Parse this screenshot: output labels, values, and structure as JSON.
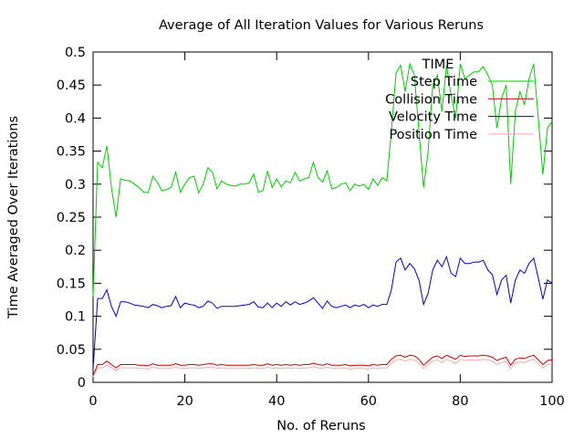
{
  "chart_data": {
    "type": "line",
    "title": "Average of All Iteration Values for Various Reruns",
    "xlabel": "No. of Reruns",
    "ylabel": "Time Averaged Over Iterations",
    "xlim": [
      0,
      100
    ],
    "ylim": [
      0,
      0.5
    ],
    "xticks": [
      "0",
      "20",
      "40",
      "60",
      "80",
      "100"
    ],
    "yticks": [
      "0",
      "0.05",
      "0.1",
      "0.15",
      "0.2",
      "0.25",
      "0.3",
      "0.35",
      "0.4",
      "0.45",
      "0.5"
    ],
    "grid": false,
    "legend_title": "TIME",
    "legend_position": "top-right",
    "x": [
      0,
      1,
      2,
      3,
      4,
      5,
      6,
      7,
      8,
      9,
      10,
      11,
      12,
      13,
      14,
      15,
      16,
      17,
      18,
      19,
      20,
      21,
      22,
      23,
      24,
      25,
      26,
      27,
      28,
      29,
      30,
      31,
      32,
      33,
      34,
      35,
      36,
      37,
      38,
      39,
      40,
      41,
      42,
      43,
      44,
      45,
      46,
      47,
      48,
      49,
      50,
      51,
      52,
      53,
      54,
      55,
      56,
      57,
      58,
      59,
      60,
      61,
      62,
      63,
      64,
      65,
      66,
      67,
      68,
      69,
      70,
      71,
      72,
      73,
      74,
      75,
      76,
      77,
      78,
      79,
      80,
      81,
      82,
      83,
      84,
      85,
      86,
      87,
      88,
      89,
      90,
      91,
      92,
      93,
      94,
      95,
      96,
      97,
      98,
      99,
      100
    ],
    "series": [
      {
        "name": "Step Time",
        "color": "#00cc00",
        "values": [
          0.13,
          0.333,
          0.325,
          0.358,
          0.295,
          0.25,
          0.308,
          0.306,
          0.305,
          0.3,
          0.295,
          0.288,
          0.287,
          0.312,
          0.303,
          0.29,
          0.292,
          0.295,
          0.318,
          0.288,
          0.3,
          0.31,
          0.312,
          0.287,
          0.3,
          0.325,
          0.318,
          0.293,
          0.305,
          0.3,
          0.298,
          0.297,
          0.3,
          0.3,
          0.302,
          0.315,
          0.288,
          0.29,
          0.32,
          0.295,
          0.308,
          0.296,
          0.305,
          0.302,
          0.318,
          0.305,
          0.308,
          0.31,
          0.333,
          0.31,
          0.303,
          0.32,
          0.293,
          0.295,
          0.3,
          0.302,
          0.29,
          0.3,
          0.297,
          0.3,
          0.292,
          0.308,
          0.298,
          0.31,
          0.305,
          0.38,
          0.468,
          0.48,
          0.44,
          0.482,
          0.465,
          0.38,
          0.295,
          0.35,
          0.45,
          0.465,
          0.41,
          0.48,
          0.435,
          0.4,
          0.482,
          0.46,
          0.465,
          0.47,
          0.47,
          0.478,
          0.465,
          0.45,
          0.385,
          0.43,
          0.45,
          0.3,
          0.41,
          0.44,
          0.42,
          0.46,
          0.482,
          0.4,
          0.315,
          0.385,
          0.395
        ]
      },
      {
        "name": "Collision Time",
        "color": "#cc0000",
        "values": [
          0.01,
          0.027,
          0.027,
          0.032,
          0.027,
          0.022,
          0.027,
          0.027,
          0.027,
          0.027,
          0.026,
          0.026,
          0.025,
          0.028,
          0.026,
          0.026,
          0.026,
          0.026,
          0.028,
          0.026,
          0.026,
          0.027,
          0.027,
          0.026,
          0.027,
          0.028,
          0.028,
          0.026,
          0.027,
          0.026,
          0.026,
          0.026,
          0.026,
          0.026,
          0.026,
          0.027,
          0.026,
          0.026,
          0.028,
          0.026,
          0.027,
          0.026,
          0.027,
          0.026,
          0.027,
          0.026,
          0.027,
          0.027,
          0.029,
          0.027,
          0.026,
          0.028,
          0.026,
          0.026,
          0.026,
          0.027,
          0.025,
          0.026,
          0.026,
          0.026,
          0.025,
          0.027,
          0.026,
          0.027,
          0.027,
          0.035,
          0.04,
          0.041,
          0.038,
          0.041,
          0.04,
          0.035,
          0.026,
          0.032,
          0.038,
          0.04,
          0.036,
          0.041,
          0.038,
          0.035,
          0.041,
          0.039,
          0.04,
          0.04,
          0.04,
          0.041,
          0.04,
          0.038,
          0.033,
          0.036,
          0.038,
          0.026,
          0.035,
          0.037,
          0.036,
          0.039,
          0.041,
          0.034,
          0.027,
          0.033,
          0.034
        ]
      },
      {
        "name": "Velocity Time",
        "color": "#0000cc",
        "values": [
          0.02,
          0.127,
          0.127,
          0.14,
          0.115,
          0.1,
          0.122,
          0.122,
          0.12,
          0.117,
          0.116,
          0.115,
          0.113,
          0.118,
          0.116,
          0.113,
          0.115,
          0.116,
          0.13,
          0.113,
          0.12,
          0.118,
          0.117,
          0.113,
          0.115,
          0.123,
          0.12,
          0.112,
          0.115,
          0.115,
          0.115,
          0.115,
          0.116,
          0.117,
          0.118,
          0.122,
          0.114,
          0.113,
          0.12,
          0.113,
          0.12,
          0.115,
          0.122,
          0.117,
          0.122,
          0.118,
          0.12,
          0.123,
          0.128,
          0.12,
          0.112,
          0.123,
          0.115,
          0.113,
          0.115,
          0.117,
          0.113,
          0.117,
          0.115,
          0.118,
          0.113,
          0.117,
          0.115,
          0.118,
          0.118,
          0.14,
          0.182,
          0.188,
          0.17,
          0.18,
          0.172,
          0.155,
          0.118,
          0.135,
          0.17,
          0.185,
          0.175,
          0.19,
          0.165,
          0.16,
          0.188,
          0.18,
          0.18,
          0.182,
          0.182,
          0.185,
          0.17,
          0.163,
          0.133,
          0.155,
          0.162,
          0.12,
          0.155,
          0.17,
          0.165,
          0.18,
          0.188,
          0.158,
          0.126,
          0.155,
          0.15
        ]
      },
      {
        "name": "Position Time",
        "color": "#ffaaaa",
        "values": [
          0.008,
          0.022,
          0.022,
          0.026,
          0.022,
          0.018,
          0.022,
          0.022,
          0.022,
          0.022,
          0.021,
          0.021,
          0.02,
          0.023,
          0.021,
          0.021,
          0.021,
          0.021,
          0.023,
          0.021,
          0.021,
          0.022,
          0.022,
          0.021,
          0.022,
          0.023,
          0.023,
          0.021,
          0.022,
          0.021,
          0.021,
          0.021,
          0.021,
          0.021,
          0.021,
          0.022,
          0.021,
          0.021,
          0.023,
          0.021,
          0.022,
          0.021,
          0.022,
          0.021,
          0.022,
          0.021,
          0.022,
          0.022,
          0.024,
          0.022,
          0.021,
          0.023,
          0.021,
          0.021,
          0.021,
          0.022,
          0.02,
          0.021,
          0.021,
          0.021,
          0.02,
          0.022,
          0.021,
          0.022,
          0.022,
          0.029,
          0.034,
          0.035,
          0.032,
          0.035,
          0.034,
          0.029,
          0.021,
          0.027,
          0.032,
          0.034,
          0.03,
          0.035,
          0.032,
          0.029,
          0.035,
          0.033,
          0.034,
          0.034,
          0.034,
          0.035,
          0.034,
          0.032,
          0.027,
          0.03,
          0.032,
          0.021,
          0.029,
          0.031,
          0.03,
          0.033,
          0.035,
          0.028,
          0.022,
          0.027,
          0.028
        ]
      }
    ]
  }
}
